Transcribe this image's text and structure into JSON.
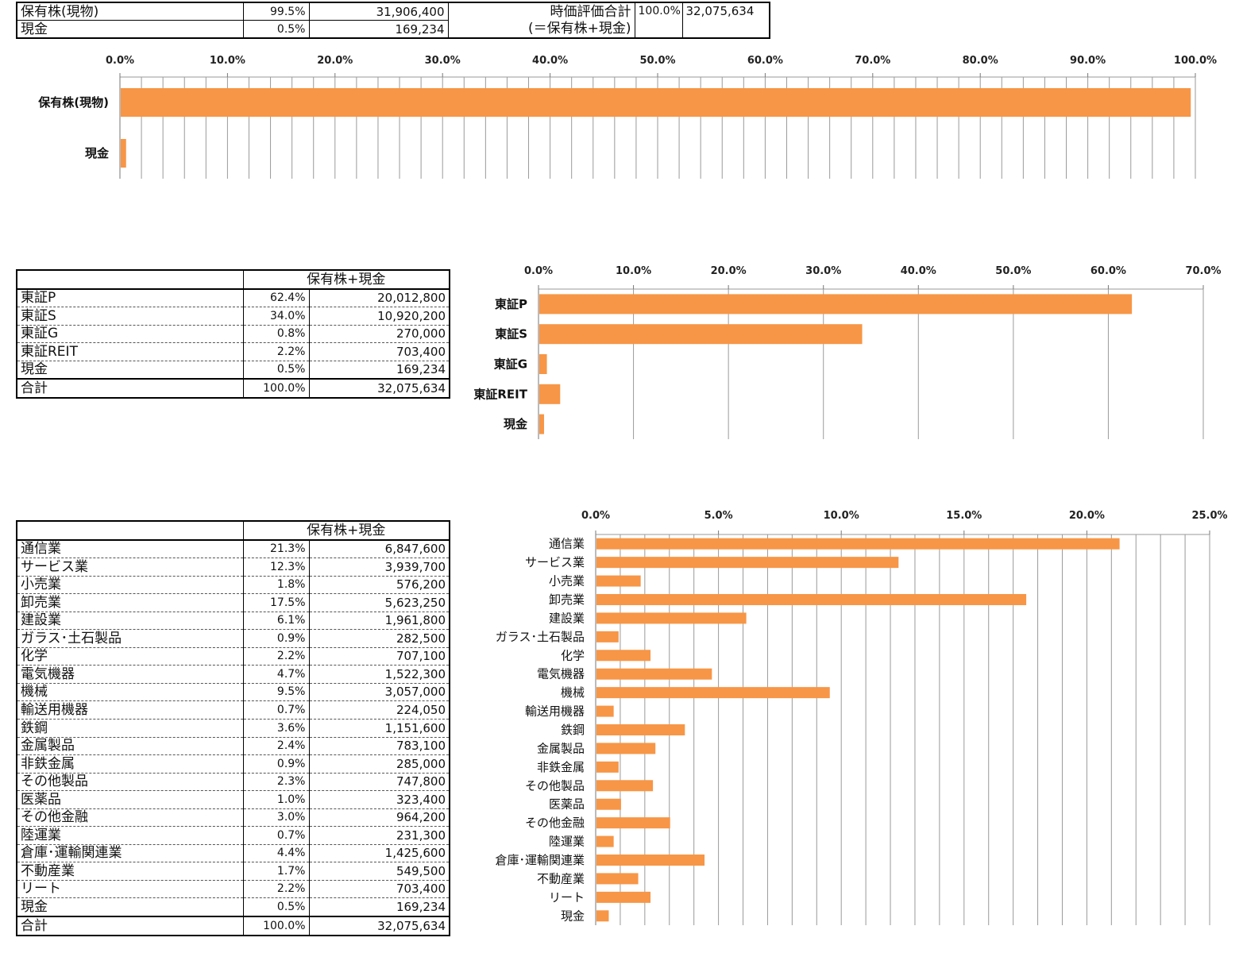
{
  "summary_table": {
    "rows": [
      {
        "label": "保有株(現物)",
        "pct": "99.5%",
        "value": "31,906,400"
      },
      {
        "label": "現金",
        "pct": "0.5%",
        "value": "169,234"
      }
    ],
    "total_label_line1": "時価評価合計",
    "total_label_line2": "(＝保有株+現金)",
    "total_pct": "100.0%",
    "total_value": "32,075,634"
  },
  "market_table": {
    "header": "保有株+現金",
    "rows": [
      {
        "label": "東証P",
        "pct": "62.4%",
        "value": "20,012,800"
      },
      {
        "label": "東証S",
        "pct": "34.0%",
        "value": "10,920,200"
      },
      {
        "label": "東証G",
        "pct": "0.8%",
        "value": "270,000"
      },
      {
        "label": "東証REIT",
        "pct": "2.2%",
        "value": "703,400"
      },
      {
        "label": "現金",
        "pct": "0.5%",
        "value": "169,234"
      }
    ],
    "total": {
      "label": "合計",
      "pct": "100.0%",
      "value": "32,075,634"
    }
  },
  "sector_table": {
    "header": "保有株+現金",
    "rows": [
      {
        "label": "通信業",
        "pct": "21.3%",
        "value": "6,847,600"
      },
      {
        "label": "サービス業",
        "pct": "12.3%",
        "value": "3,939,700"
      },
      {
        "label": "小売業",
        "pct": "1.8%",
        "value": "576,200"
      },
      {
        "label": "卸売業",
        "pct": "17.5%",
        "value": "5,623,250"
      },
      {
        "label": "建設業",
        "pct": "6.1%",
        "value": "1,961,800"
      },
      {
        "label": "ガラス･土石製品",
        "pct": "0.9%",
        "value": "282,500"
      },
      {
        "label": "化学",
        "pct": "2.2%",
        "value": "707,100"
      },
      {
        "label": "電気機器",
        "pct": "4.7%",
        "value": "1,522,300"
      },
      {
        "label": "機械",
        "pct": "9.5%",
        "value": "3,057,000"
      },
      {
        "label": "輸送用機器",
        "pct": "0.7%",
        "value": "224,050"
      },
      {
        "label": "鉄鋼",
        "pct": "3.6%",
        "value": "1,151,600"
      },
      {
        "label": "金属製品",
        "pct": "2.4%",
        "value": "783,100"
      },
      {
        "label": "非鉄金属",
        "pct": "0.9%",
        "value": "285,000"
      },
      {
        "label": "その他製品",
        "pct": "2.3%",
        "value": "747,800"
      },
      {
        "label": "医薬品",
        "pct": "1.0%",
        "value": "323,400"
      },
      {
        "label": "その他金融",
        "pct": "3.0%",
        "value": "964,200"
      },
      {
        "label": "陸運業",
        "pct": "0.7%",
        "value": "231,300"
      },
      {
        "label": "倉庫･運輸関連業",
        "pct": "4.4%",
        "value": "1,425,600"
      },
      {
        "label": "不動産業",
        "pct": "1.7%",
        "value": "549,500"
      },
      {
        "label": "リート",
        "pct": "2.2%",
        "value": "703,400"
      },
      {
        "label": "現金",
        "pct": "0.5%",
        "value": "169,234"
      }
    ],
    "total": {
      "label": "合計",
      "pct": "100.0%",
      "value": "32,075,634"
    }
  },
  "colors": {
    "bar": "#F79646",
    "grid": "#9a9a9a"
  },
  "chart_data": [
    {
      "type": "bar",
      "orientation": "horizontal",
      "categories": [
        "保有株(現物)",
        "現金"
      ],
      "values": [
        99.5,
        0.5
      ],
      "xlim": [
        0,
        100
      ],
      "tick_step": 10,
      "minor_step": 2,
      "tick_labels": [
        "0.0%",
        "10.0%",
        "20.0%",
        "30.0%",
        "40.0%",
        "50.0%",
        "60.0%",
        "70.0%",
        "80.0%",
        "90.0%",
        "100.0%"
      ],
      "axis_position": "top",
      "grid": true
    },
    {
      "type": "bar",
      "orientation": "horizontal",
      "categories": [
        "東証P",
        "東証S",
        "東証G",
        "東証REIT",
        "現金"
      ],
      "values": [
        62.4,
        34.0,
        0.8,
        2.2,
        0.5
      ],
      "xlim": [
        0,
        70
      ],
      "tick_step": 10,
      "minor_step": 10,
      "tick_labels": [
        "0.0%",
        "10.0%",
        "20.0%",
        "30.0%",
        "40.0%",
        "50.0%",
        "60.0%",
        "70.0%"
      ],
      "axis_position": "top",
      "grid": true
    },
    {
      "type": "bar",
      "orientation": "horizontal",
      "categories": [
        "通信業",
        "サービス業",
        "小売業",
        "卸売業",
        "建設業",
        "ガラス･土石製品",
        "化学",
        "電気機器",
        "機械",
        "輸送用機器",
        "鉄鋼",
        "金属製品",
        "非鉄金属",
        "その他製品",
        "医薬品",
        "その他金融",
        "陸運業",
        "倉庫･運輸関連業",
        "不動産業",
        "リート",
        "現金"
      ],
      "values": [
        21.3,
        12.3,
        1.8,
        17.5,
        6.1,
        0.9,
        2.2,
        4.7,
        9.5,
        0.7,
        3.6,
        2.4,
        0.9,
        2.3,
        1.0,
        3.0,
        0.7,
        4.4,
        1.7,
        2.2,
        0.5
      ],
      "xlim": [
        0,
        25
      ],
      "tick_step": 5,
      "minor_step": 1,
      "tick_labels": [
        "0.0%",
        "5.0%",
        "10.0%",
        "15.0%",
        "20.0%",
        "25.0%"
      ],
      "axis_position": "top",
      "grid": true
    }
  ]
}
